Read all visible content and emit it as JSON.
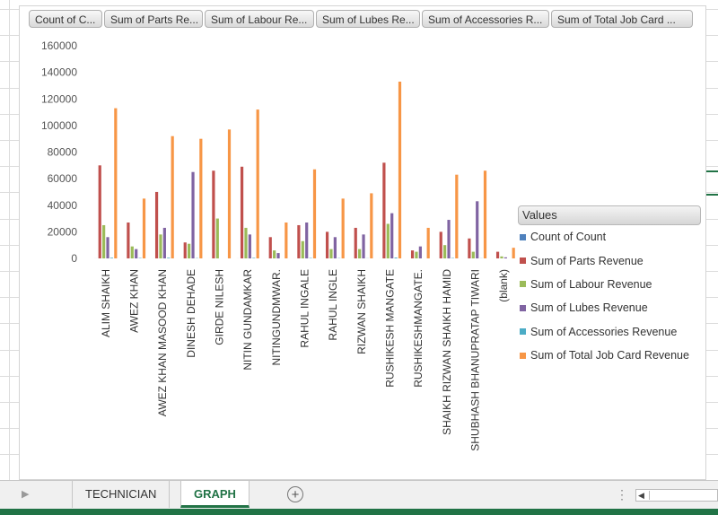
{
  "field_buttons": [
    "Count of C...",
    "Sum of Parts Re...",
    "Sum of Labour Re...",
    "Sum of Lubes Re...",
    "Sum of Accessories R...",
    "Sum of Total Job Card ..."
  ],
  "sheet_tabs": [
    "TECHNICIAN",
    "GRAPH"
  ],
  "active_tab": "GRAPH",
  "legend_title": "Values",
  "colors": {
    "count": "#4f81bd",
    "parts": "#c0504d",
    "labour": "#9bbb59",
    "lubes": "#8064a2",
    "accessories": "#4bacc6",
    "total": "#f79646",
    "accent": "#217346"
  },
  "chart_data": {
    "type": "bar",
    "ylim": [
      0,
      160000
    ],
    "yticks": [
      0,
      20000,
      40000,
      60000,
      80000,
      100000,
      120000,
      140000,
      160000
    ],
    "grid": false,
    "legend_position": "right",
    "categories": [
      "ALIM SHAIKH",
      "AWEZ KHAN",
      "AWEZ KHAN MASOOD KHAN",
      "DINESH DEHADE",
      "GIRDE NILESH",
      "NITIN GUNDAMKAR",
      "NITINGUNDMWAR.",
      "RAHUL INGALE",
      "RAHUL INGLE",
      "RIZWAN SHAIKH",
      "RUSHIKESH MANGATE",
      "RUSHIKESHMANGATE.",
      "SHAIKH RIZWAN SHAIKH HAMID",
      "SHUBHASH BHANUPRATAP TIWARI",
      "(blank)"
    ],
    "series": [
      {
        "name": "Count of Count",
        "color_key": "count",
        "values": [
          30,
          12,
          20,
          15,
          18,
          25,
          6,
          14,
          10,
          12,
          28,
          4,
          9,
          11,
          1
        ]
      },
      {
        "name": "Sum of Parts Revenue",
        "color_key": "parts",
        "values": [
          70000,
          27000,
          50000,
          12000,
          66000,
          69000,
          16000,
          25000,
          20000,
          23000,
          72000,
          6000,
          20000,
          15000,
          5000
        ]
      },
      {
        "name": "Sum of Labour Revenue",
        "color_key": "labour",
        "values": [
          25000,
          9000,
          18000,
          11000,
          30000,
          23000,
          6000,
          13000,
          7000,
          7000,
          26000,
          5000,
          10000,
          5000,
          1500
        ]
      },
      {
        "name": "Sum of Lubes Revenue",
        "color_key": "lubes",
        "values": [
          16000,
          7000,
          23000,
          65000,
          0,
          18000,
          4000,
          27000,
          16000,
          18000,
          34000,
          9000,
          29000,
          43000,
          800
        ]
      },
      {
        "name": "Sum of Accessories Revenue",
        "color_key": "accessories",
        "values": [
          500,
          300,
          500,
          200,
          0,
          400,
          0,
          300,
          200,
          100,
          600,
          0,
          300,
          100,
          0
        ]
      },
      {
        "name": "Sum of Total Job Card Revenue",
        "color_key": "total",
        "values": [
          113000,
          45000,
          92000,
          90000,
          97000,
          112000,
          27000,
          67000,
          45000,
          49000,
          133000,
          23000,
          63000,
          66000,
          8000
        ]
      }
    ]
  }
}
